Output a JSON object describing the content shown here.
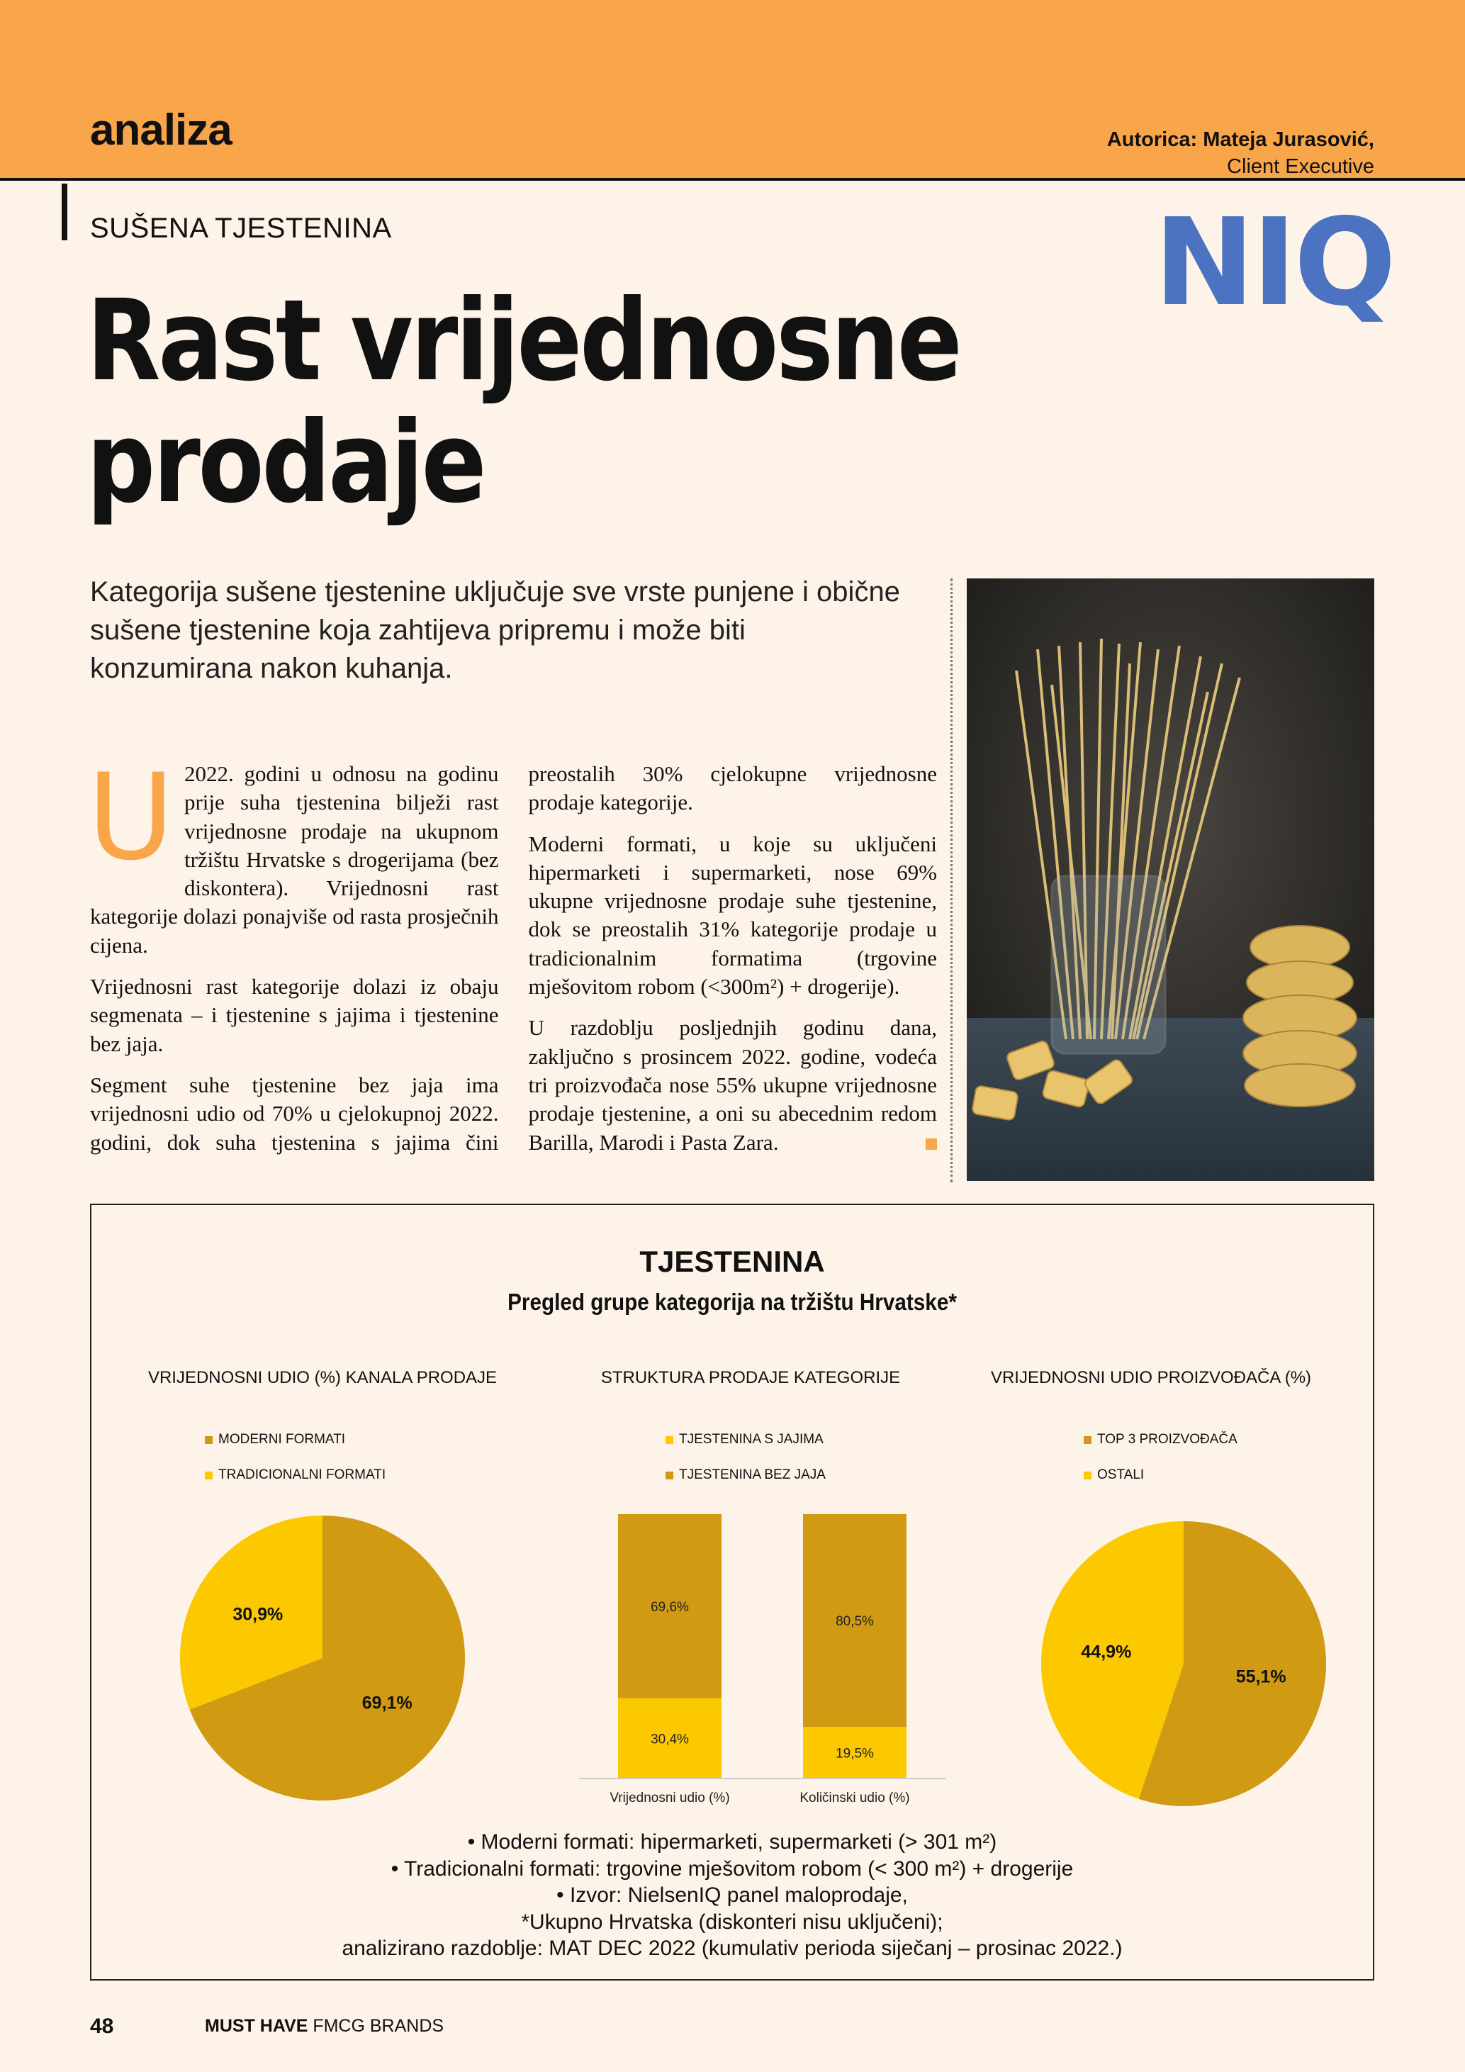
{
  "header": {
    "section": "analiza",
    "author_line": "Autorica: Mateja Jurasović,",
    "author_role": "Client Executive",
    "logo_text": "NIQ",
    "colors": {
      "band": "#f9a64a",
      "logo": "#4b73c1"
    }
  },
  "article": {
    "kicker": "SUŠENA TJESTENINA",
    "title_line1": "Rast vrijednosne",
    "title_line2": "prodaje",
    "lead": "Kategorija sušene tjestenine uključuje sve vrste punjene i obične sušene tjestenine koja zahtijeva pripremu i može biti konzumirana nakon kuhanja.",
    "dropcap": "U",
    "paragraphs": [
      " 2022. godini u odnosu na godinu prije suha tjestenina bilježi rast vrijednosne prodaje na ukupnom tržištu Hrvatske s drogerijama (bez diskontera). Vrijednosni rast kategorije dolazi ponajviše od rasta prosječnih cijena.",
      "Vrijednosni rast kategorije dolazi iz obaju segmenata – i tjestenine s jajima i tjestenine bez jaja.",
      "Segment suhe tjestenine bez jaja ima vrijednosni udio od 70% u cjelokupnoj 2022. godini, dok suha tjestenina s jajima čini preostalih 30% cjelokupne vrijednosne prodaje kategorije.",
      "Moderni formati, u koje su uključeni hipermarketi i supermarketi, nose 69% ukupne vrijednosne prodaje suhe tjestenine, dok se preostalih 31% kategorije prodaje u tradicionalnim formatima (trgovine mješovitom robom (<300m²) + drogerije).",
      "U razdoblju posljednjih godinu dana, zaključno s prosincem 2022. godine, vodeća tri proizvođača nose 55% ukupne vrijednosne prodaje tjestenine, a oni su abecednim redom Barilla, Marodi i Pasta Zara."
    ]
  },
  "infographic": {
    "title": "TJESTENINA",
    "subtitle": "Pregled grupe kategorija na tržištu Hrvatske*",
    "notes": [
      "•   Moderni formati: hipermarketi, supermarketi (> 301 m²)",
      "•   Tradicionalni formati: trgovine mješovitom robom (< 300 m²) + drogerije",
      "•   Izvor: NielsenIQ panel maloprodaje,",
      "*Ukupno Hrvatska (diskonteri nisu uključeni);",
      "analizirano razdoblje: MAT DEC 2022 (kumulativ perioda siječanj – prosinac 2022.)"
    ]
  },
  "chart_data": [
    {
      "type": "pie",
      "title": "VRIJEDNOSNI UDIO (%) KANALA PRODAJE",
      "legend": "top-left",
      "slices": [
        {
          "name": "MODERNI FORMATI",
          "value": 69.1,
          "label": "69,1%",
          "color": "#d09a12"
        },
        {
          "name": "TRADICIONALNI FORMATI",
          "value": 30.9,
          "label": "30,9%",
          "color": "#fcc800"
        }
      ]
    },
    {
      "type": "bar",
      "stacked": true,
      "title": "STRUKTURA PRODAJE KATEGORIJE",
      "legend": "top",
      "categories": [
        "Vrijednosni udio (%)",
        "Količinski udio (%)"
      ],
      "ylim": [
        0,
        100
      ],
      "series": [
        {
          "name": "TJESTENINA S JAJIMA",
          "values": [
            30.4,
            19.5
          ],
          "labels": [
            "30,4%",
            "19,5%"
          ],
          "color": "#fcc800"
        },
        {
          "name": "TJESTENINA BEZ JAJA",
          "values": [
            69.6,
            80.5
          ],
          "labels": [
            "69,6%",
            "80,5%"
          ],
          "color": "#d09a12"
        }
      ]
    },
    {
      "type": "pie",
      "title": "VRIJEDNOSNI UDIO PROIZVOĐAČA (%)",
      "legend": "top-left",
      "slices": [
        {
          "name": "TOP 3 PROIZVOĐAČA",
          "value": 55.1,
          "label": "55,1%",
          "color": "#d09a12"
        },
        {
          "name": "OSTALI",
          "value": 44.9,
          "label": "44,9%",
          "color": "#fcc800"
        }
      ]
    }
  ],
  "footer": {
    "page": "48",
    "brand_bold": "MUST HAVE",
    "brand_rest": " FMCG BRANDS"
  }
}
